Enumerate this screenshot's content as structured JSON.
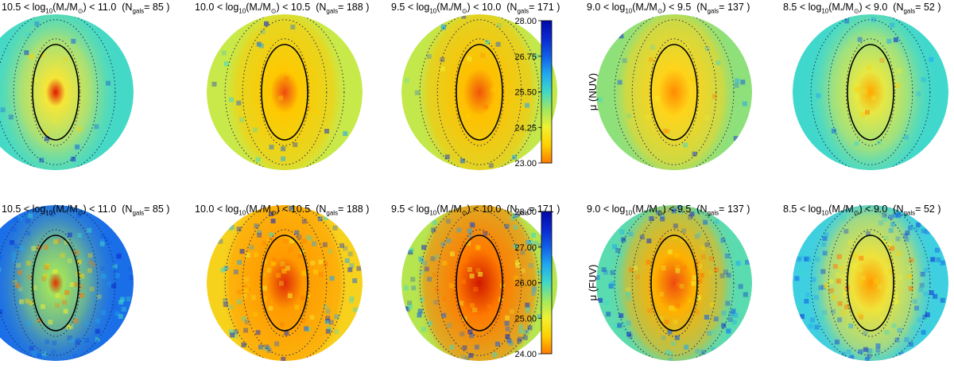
{
  "chart_data": {
    "type": "heatmap",
    "description_rows": [
      "NUV",
      "FUV"
    ],
    "panels": [
      {
        "band": "NUV",
        "mass_lo": "10.5",
        "mass_hi": "11.0",
        "ngals": "85",
        "background": "#44d9c6",
        "core": "#e01800",
        "core_size": 0.15,
        "halo": "#f6e637",
        "halo_size": 0.55,
        "noise": 0.05
      },
      {
        "band": "NUV",
        "mass_lo": "10.0",
        "mass_hi": "10.5",
        "ngals": "188",
        "background": "#c7ea4a",
        "core": "#ef4a10",
        "core_size": 0.22,
        "halo": "#ffc800",
        "halo_size": 0.75,
        "noise": 0.05
      },
      {
        "band": "NUV",
        "mass_lo": "9.5",
        "mass_hi": "10.0",
        "ngals": "171",
        "background": "#c2e84c",
        "core": "#f0550a",
        "core_size": 0.25,
        "halo": "#ffc000",
        "halo_size": 0.8,
        "noise": 0.05
      },
      {
        "band": "NUV",
        "mass_lo": "9.0",
        "mass_hi": "9.5",
        "ngals": "137",
        "background": "#8ee07a",
        "core": "#ff8c00",
        "core_size": 0.25,
        "halo": "#ffd41a",
        "halo_size": 0.75,
        "noise": 0.05
      },
      {
        "band": "NUV",
        "mass_lo": "8.5",
        "mass_hi": "9.0",
        "ngals": "52",
        "background": "#40d8cc",
        "core": "#ffa800",
        "core_size": 0.22,
        "halo": "#e6e844",
        "halo_size": 0.6,
        "noise": 0.05
      },
      {
        "band": "FUV",
        "mass_lo": "10.5",
        "mass_hi": "11.0",
        "ngals": "85",
        "background": "#1a6ee8",
        "core": "#e03000",
        "core_size": 0.12,
        "halo": "#9fe25e",
        "halo_size": 0.5,
        "noise": 0.25
      },
      {
        "band": "FUV",
        "mass_lo": "10.0",
        "mass_hi": "10.5",
        "ngals": "188",
        "background": "#f7d21c",
        "core": "#e02a08",
        "core_size": 0.28,
        "halo": "#ff9a00",
        "halo_size": 0.85,
        "noise": 0.25
      },
      {
        "band": "FUV",
        "mass_lo": "9.5",
        "mass_hi": "10.0",
        "ngals": "171",
        "background": "#b5e650",
        "core": "#d01800",
        "core_size": 0.35,
        "halo": "#ff7a00",
        "halo_size": 0.85,
        "noise": 0.25
      },
      {
        "band": "FUV",
        "mass_lo": "9.0",
        "mass_hi": "9.5",
        "ngals": "137",
        "background": "#5adbb0",
        "core": "#ee4a10",
        "core_size": 0.3,
        "halo": "#ffb000",
        "halo_size": 0.75,
        "noise": 0.25
      },
      {
        "band": "FUV",
        "mass_lo": "8.5",
        "mass_hi": "9.0",
        "ngals": "52",
        "background": "#3ecfe0",
        "core": "#ff9a00",
        "core_size": 0.28,
        "halo": "#f0e23a",
        "halo_size": 0.7,
        "noise": 0.3
      }
    ],
    "colorbars": [
      {
        "label": "μ (NUV)",
        "min": 23.0,
        "max": 28.0,
        "ticks": [
          "28.00",
          "26.75",
          "25.50",
          "24.25",
          "23.00"
        ]
      },
      {
        "label": "μ (FUV)",
        "min": 24.0,
        "max": 28.0,
        "ticks": [
          "28.00",
          "27.00",
          "26.00",
          "25.00",
          "24.00"
        ]
      }
    ],
    "colormap": [
      "#ff7a00",
      "#ffd000",
      "#f0f030",
      "#a0e860",
      "#40d8c8",
      "#20a8f0",
      "#1060e8",
      "#0a28d0",
      "#000aa8"
    ]
  }
}
